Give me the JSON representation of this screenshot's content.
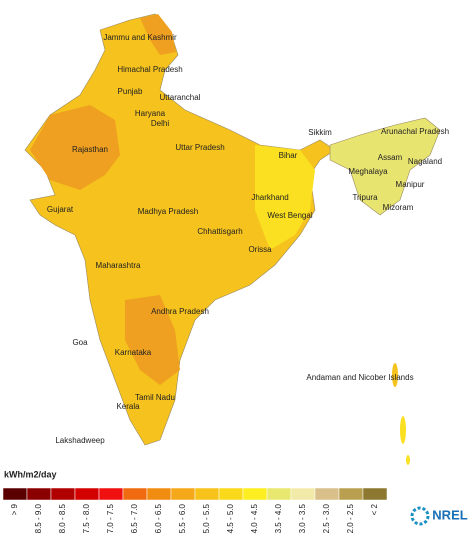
{
  "map": {
    "regions": [
      "Jammu and Kashmir",
      "Himachal Pradesh",
      "Punjab",
      "Uttaranchal",
      "Haryana",
      "Delhi",
      "Rajasthan",
      "Uttar Pradesh",
      "Bihar",
      "Sikkim",
      "Arunachal Pradesh",
      "Assam",
      "Nagaland",
      "Meghalaya",
      "Manipur",
      "Tripura",
      "Mizoram",
      "Jharkhand",
      "West Bengal",
      "Gujarat",
      "Madhya Pradesh",
      "Chhattisgarh",
      "Orissa",
      "Maharashtra",
      "Andhra Pradesh",
      "Goa",
      "Karnataka",
      "Kerala",
      "Tamil Nadu",
      "Lakshadweep",
      "Andaman and Nicober Islands"
    ],
    "legend": {
      "title": "kWh/m2/day",
      "bins": [
        "> 9",
        "8.5 - 9.0",
        "8.0 - 8.5",
        "7.5 - 8.0",
        "7.0 - 7.5",
        "6.5 - 7.0",
        "6.0 - 6.5",
        "5.5 - 6.0",
        "5.0 - 5.5",
        "4.5 - 5.0",
        "4.0 - 4.5",
        "3.5 - 4.0",
        "3.0 - 3.5",
        "2.5 - 3.0",
        "2.0 - 2.5",
        "< 2"
      ],
      "colors": [
        "#5a0000",
        "#8b0000",
        "#b00000",
        "#d40000",
        "#f01010",
        "#f06a10",
        "#f08c10",
        "#f5a81a",
        "#f7c21a",
        "#fad91a",
        "#fcee20",
        "#e8e870",
        "#f2eaa8",
        "#d9c08a",
        "#b8a050",
        "#8c7830"
      ]
    },
    "logo": "NREL"
  }
}
